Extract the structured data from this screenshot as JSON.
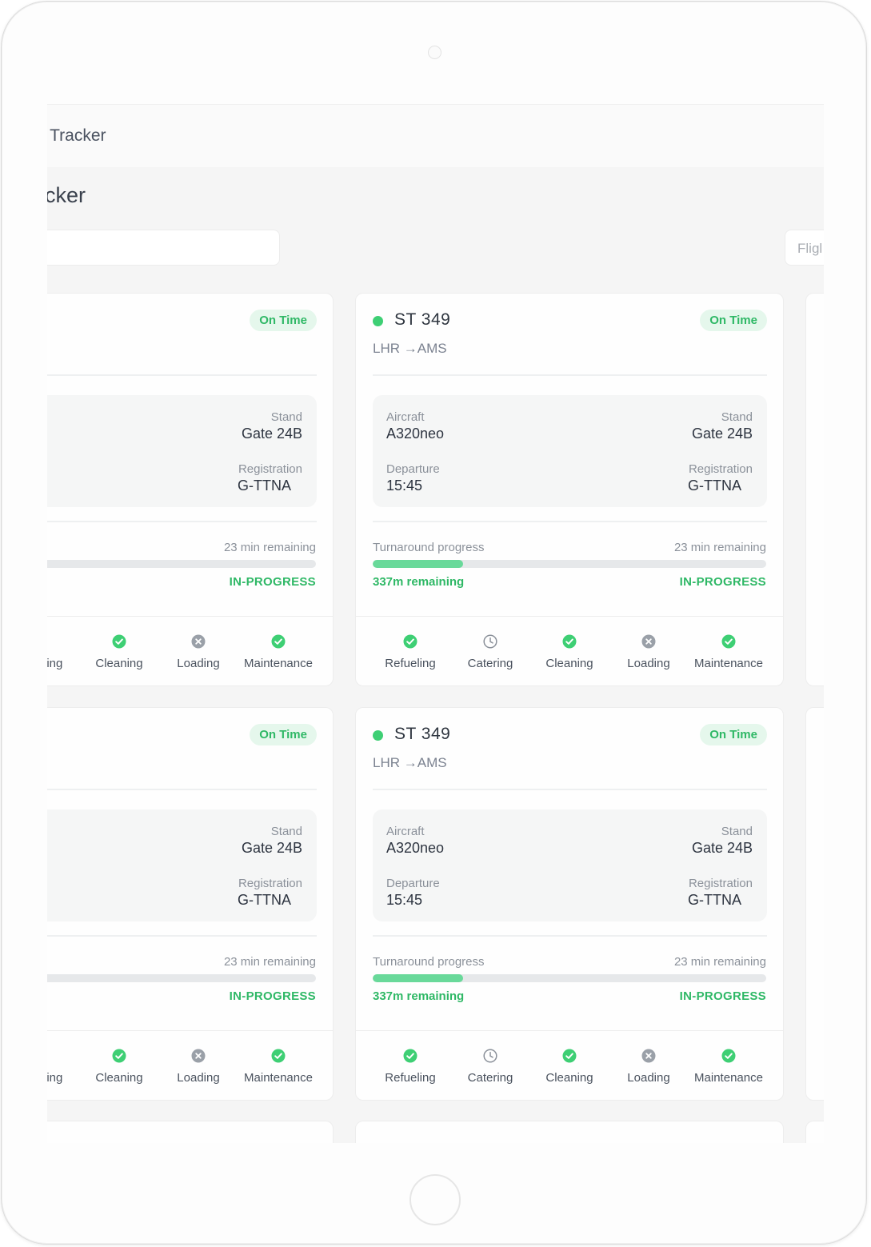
{
  "app": {
    "topbar_title": "d Tracker",
    "page_title": "acker",
    "flight_filter_placeholder": "Fligl"
  },
  "cards": [
    {
      "flight_number": "ST 349",
      "route": "LHR →AMS",
      "status_badge": "On Time",
      "aircraft_label": "Aircraft",
      "aircraft": "A320neo",
      "stand_label": "Stand",
      "stand": "Gate 24B",
      "departure_label": "Departure",
      "departure": "15:45",
      "registration_label": "Registration",
      "registration": "G-TTNA",
      "progress_label": "Turnaround progress",
      "time_remaining": "23 min remaining",
      "progress_fraction": 0.23,
      "distance_remaining": "337m remaining",
      "progress_status": "IN-PROGRESS",
      "tasks": [
        {
          "label": "Refueling",
          "state": "done",
          "icon": "check-circle-icon"
        },
        {
          "label": "Catering",
          "state": "pending",
          "icon": "clock-icon"
        },
        {
          "label": "Cleaning",
          "state": "done",
          "icon": "check-circle-icon"
        },
        {
          "label": "Loading",
          "state": "blocked",
          "icon": "x-circle-icon"
        },
        {
          "label": "Maintenance",
          "state": "done",
          "icon": "check-circle-icon"
        }
      ]
    },
    {
      "flight_number": "ST 349",
      "route": "LHR →AMS",
      "status_badge": "On Time",
      "aircraft_label": "Aircraft",
      "aircraft": "A320neo",
      "stand_label": "Stand",
      "stand": "Gate 24B",
      "departure_label": "Departure",
      "departure": "15:45",
      "registration_label": "Registration",
      "registration": "G-TTNA",
      "progress_label": "Turnaround progress",
      "time_remaining": "23 min remaining",
      "progress_fraction": 0.23,
      "distance_remaining": "337m remaining",
      "progress_status": "IN-PROGRESS",
      "tasks": [
        {
          "label": "Refueling",
          "state": "done",
          "icon": "check-circle-icon"
        },
        {
          "label": "Catering",
          "state": "pending",
          "icon": "clock-icon"
        },
        {
          "label": "Cleaning",
          "state": "done",
          "icon": "check-circle-icon"
        },
        {
          "label": "Loading",
          "state": "blocked",
          "icon": "x-circle-icon"
        },
        {
          "label": "Maintenance",
          "state": "done",
          "icon": "check-circle-icon"
        }
      ]
    },
    {
      "flight_number": "ST 349",
      "route": "LHR →AMS",
      "status_badge": "On Time",
      "aircraft_label": "Aircraft",
      "aircraft": "A320neo",
      "stand_label": "Stand",
      "stand": "Gate 24B",
      "departure_label": "Departure",
      "departure": "15:45",
      "registration_label": "Registration",
      "registration": "G-TTNA",
      "progress_label": "Turnaround progress",
      "time_remaining": "23 min remaining",
      "progress_fraction": 0.23,
      "distance_remaining": "337m remaining",
      "progress_status": "IN-PROGRESS",
      "tasks": [
        {
          "label": "Refueling",
          "state": "done",
          "icon": "check-circle-icon"
        },
        {
          "label": "Catering",
          "state": "pending",
          "icon": "clock-icon"
        },
        {
          "label": "Cleaning",
          "state": "done",
          "icon": "check-circle-icon"
        },
        {
          "label": "Loading",
          "state": "blocked",
          "icon": "x-circle-icon"
        },
        {
          "label": "Maintenance",
          "state": "done",
          "icon": "check-circle-icon"
        }
      ]
    },
    {
      "flight_number": "ST 349",
      "route": "LHR →AMS",
      "status_badge": "On Time",
      "aircraft_label": "Aircraft",
      "aircraft": "A320neo",
      "stand_label": "Stand",
      "stand": "Gate 24B",
      "departure_label": "Departure",
      "departure": "15:45",
      "registration_label": "Registration",
      "registration": "G-TTNA",
      "progress_label": "Turnaround progress",
      "time_remaining": "23 min remaining",
      "progress_fraction": 0.23,
      "distance_remaining": "337m remaining",
      "progress_status": "IN-PROGRESS",
      "tasks": [
        {
          "label": "Refueling",
          "state": "done",
          "icon": "check-circle-icon"
        },
        {
          "label": "Catering",
          "state": "pending",
          "icon": "clock-icon"
        },
        {
          "label": "Cleaning",
          "state": "done",
          "icon": "check-circle-icon"
        },
        {
          "label": "Loading",
          "state": "blocked",
          "icon": "x-circle-icon"
        },
        {
          "label": "Maintenance",
          "state": "done",
          "icon": "check-circle-icon"
        }
      ]
    }
  ],
  "colors": {
    "accent_green": "#3ecf74",
    "progress_fill": "#69d99a",
    "blocked_gray": "#9aa0a8",
    "pending_gray": "#8b919a"
  }
}
